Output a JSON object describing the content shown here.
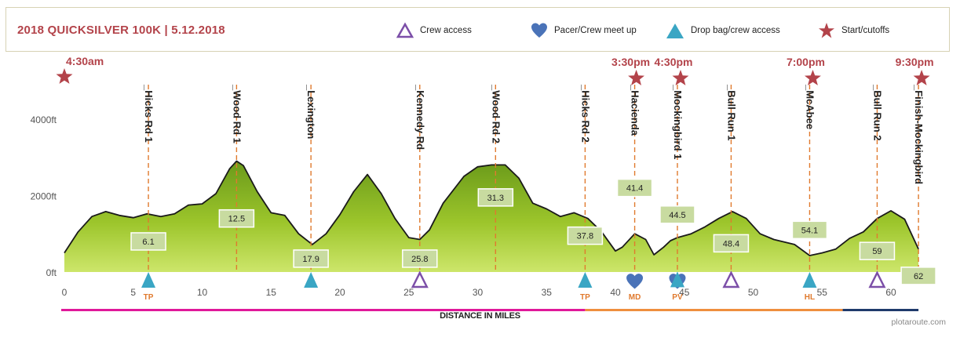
{
  "legend": {
    "title": "2018 QUICKSILVER 100K | 5.12.2018",
    "items": [
      {
        "key": "crew",
        "label": "Crew access",
        "icon": "triangle-outline-icon",
        "color": "#7c4fa8"
      },
      {
        "key": "pacer",
        "label": "Pacer/Crew meet up",
        "icon": "heart-icon",
        "color": "#4a73b8"
      },
      {
        "key": "drop",
        "label": "Drop bag/crew access",
        "icon": "triangle-filled-icon",
        "color": "#3aa6c4"
      },
      {
        "key": "start",
        "label": "Start/cutoffs",
        "icon": "star-icon",
        "color": "#b3434a"
      }
    ]
  },
  "chart_data": {
    "type": "area",
    "title": "2018 QUICKSILVER 100K | 5.12.2018",
    "xlabel": "DISTANCE IN MILES",
    "ylabel": "",
    "xlim": [
      0,
      63
    ],
    "ylim": [
      0,
      5000
    ],
    "yticks": [
      {
        "value": 0,
        "label": "0ft"
      },
      {
        "value": 2000,
        "label": "2000ft"
      },
      {
        "value": 4000,
        "label": "4000ft"
      }
    ],
    "xticks": [
      0,
      5,
      10,
      15,
      20,
      25,
      30,
      35,
      40,
      45,
      50,
      55,
      60
    ],
    "xtick_labels": [
      "0",
      "5",
      "10",
      "15",
      "20",
      "25",
      "30",
      "35",
      "40",
      "45",
      "50",
      "55",
      "60"
    ],
    "profile": [
      [
        0,
        500
      ],
      [
        1,
        1050
      ],
      [
        2,
        1450
      ],
      [
        3,
        1580
      ],
      [
        4,
        1480
      ],
      [
        5,
        1420
      ],
      [
        6,
        1520
      ],
      [
        7,
        1450
      ],
      [
        8,
        1520
      ],
      [
        9,
        1750
      ],
      [
        10,
        1780
      ],
      [
        11,
        2050
      ],
      [
        12,
        2700
      ],
      [
        12.5,
        2900
      ],
      [
        13,
        2780
      ],
      [
        14,
        2100
      ],
      [
        15,
        1550
      ],
      [
        16,
        1480
      ],
      [
        17,
        1000
      ],
      [
        18,
        720
      ],
      [
        19,
        1000
      ],
      [
        20,
        1500
      ],
      [
        21,
        2100
      ],
      [
        22,
        2550
      ],
      [
        23,
        2050
      ],
      [
        24,
        1400
      ],
      [
        25,
        900
      ],
      [
        25.8,
        850
      ],
      [
        26.5,
        1100
      ],
      [
        27.5,
        1800
      ],
      [
        29,
        2500
      ],
      [
        30,
        2750
      ],
      [
        31,
        2800
      ],
      [
        32,
        2800
      ],
      [
        33,
        2450
      ],
      [
        34,
        1800
      ],
      [
        35,
        1650
      ],
      [
        36,
        1450
      ],
      [
        37,
        1550
      ],
      [
        38,
        1400
      ],
      [
        39,
        1050
      ],
      [
        40,
        550
      ],
      [
        40.5,
        650
      ],
      [
        41.4,
        1000
      ],
      [
        42.2,
        850
      ],
      [
        42.8,
        450
      ],
      [
        43.5,
        650
      ],
      [
        44,
        820
      ],
      [
        44.5,
        900
      ],
      [
        45.5,
        1000
      ],
      [
        46.5,
        1180
      ],
      [
        47.5,
        1400
      ],
      [
        48.5,
        1580
      ],
      [
        49.5,
        1400
      ],
      [
        50.5,
        1000
      ],
      [
        51.5,
        850
      ],
      [
        53,
        720
      ],
      [
        54.1,
        430
      ],
      [
        55,
        500
      ],
      [
        56,
        600
      ],
      [
        57,
        880
      ],
      [
        58,
        1050
      ],
      [
        59,
        1400
      ],
      [
        60,
        1600
      ],
      [
        61,
        1380
      ],
      [
        62,
        600
      ]
    ],
    "aid_stations": [
      {
        "name": "_Hicks Rd 1",
        "mile": 6.1,
        "mile_label": "6.1",
        "box_y": 800,
        "icon": "drop",
        "code": "TP",
        "star": false
      },
      {
        "name": "_Wood Rd 1",
        "mile": 12.5,
        "mile_label": "12.5",
        "box_y": 1400,
        "icon": null,
        "code": "",
        "star": false
      },
      {
        "name": "_Lexington",
        "mile": 17.9,
        "mile_label": "17.9",
        "box_y": 350,
        "icon": "drop",
        "code": "",
        "star": false
      },
      {
        "name": "_Kennedy Rd",
        "mile": 25.8,
        "mile_label": "25.8",
        "box_y": 350,
        "icon": "crew",
        "code": "",
        "star": false
      },
      {
        "name": "_Wood Rd 2",
        "mile": 31.3,
        "mile_label": "31.3",
        "box_y": 1950,
        "icon": null,
        "code": "",
        "star": false
      },
      {
        "name": "_Hicks Rd 2",
        "mile": 37.8,
        "mile_label": "37.8",
        "box_y": 950,
        "icon": "drop",
        "code": "TP",
        "star": false
      },
      {
        "name": "_Hacienda",
        "mile": 41.4,
        "mile_label": "41.4",
        "box_y": 2200,
        "icon": "pacer",
        "code": "MD",
        "star": true,
        "time": "3:30pm"
      },
      {
        "name": "_Mockingbird 1",
        "mile": 44.5,
        "mile_label": "44.5",
        "box_y": 1500,
        "icon": "pacer",
        "code": "PV",
        "star": true,
        "time": "4:30pm"
      },
      {
        "name": "_Bull Run 1",
        "mile": 48.4,
        "mile_label": "48.4",
        "box_y": 750,
        "icon": "crew",
        "code": "",
        "star": false
      },
      {
        "name": "_McAbee",
        "mile": 54.1,
        "mile_label": "54.1",
        "box_y": 1100,
        "icon": "drop",
        "code": "HL",
        "star": true,
        "time": "7:00pm"
      },
      {
        "name": "_Bull Run 2",
        "mile": 59,
        "mile_label": "59",
        "box_y": 550,
        "icon": "crew",
        "code": "",
        "star": false
      },
      {
        "name": "_Finish-Mockingbird",
        "mile": 62,
        "mile_label": "62",
        "box_y": -100,
        "icon": null,
        "code": "",
        "star": true,
        "time": "9:30pm"
      }
    ],
    "start": {
      "mile": 0,
      "time": "4:30am"
    },
    "extra_markers": [
      {
        "mile": 44.5,
        "icon": "drop",
        "elev": 300
      }
    ],
    "grid": false,
    "legend_position": "top"
  },
  "footer": {
    "xlabel": "DISTANCE IN MILES",
    "credit": "plotaroute.com"
  }
}
